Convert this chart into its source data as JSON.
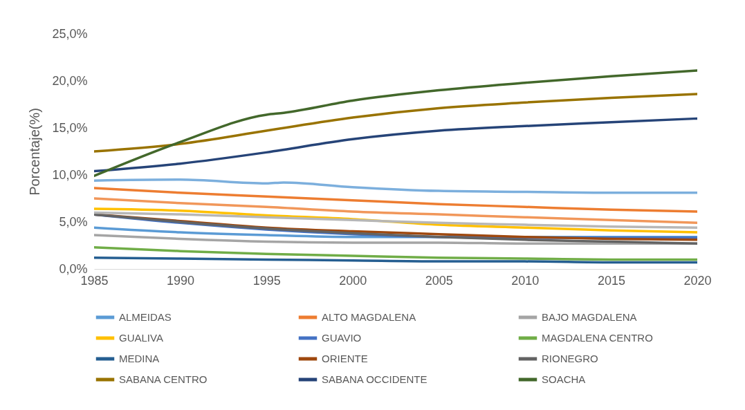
{
  "chart_data": {
    "type": "line",
    "ylabel": "Porcentaje(%)",
    "legend": "bottom",
    "xlim": [
      1985,
      2020
    ],
    "xticks": [
      1985,
      1990,
      1995,
      2000,
      2005,
      2010,
      2015,
      2020
    ],
    "ylim": [
      0,
      25
    ],
    "yticks": [
      {
        "value": 0,
        "label": "0,0%"
      },
      {
        "value": 5,
        "label": "5,0%"
      },
      {
        "value": 10,
        "label": "10,0%"
      },
      {
        "value": 15,
        "label": "15,0%"
      },
      {
        "value": 20,
        "label": "20,0%"
      },
      {
        "value": 25,
        "label": "25,0%"
      }
    ],
    "x": [
      1985,
      1990,
      1995,
      2000,
      2005,
      2010,
      2015,
      2020
    ],
    "series": [
      {
        "name": "ALMEIDAS",
        "color": "#5b9bd5",
        "values": [
          4.4,
          3.9,
          3.6,
          3.4,
          3.4,
          3.4,
          3.4,
          3.4
        ]
      },
      {
        "name": "ALTO MAGDALENA",
        "color": "#ed7d31",
        "values": [
          8.6,
          8.1,
          7.7,
          7.3,
          6.9,
          6.6,
          6.3,
          6.1
        ]
      },
      {
        "name": "BAJO MAGDALENA",
        "color": "#a5a5a5",
        "values": [
          3.6,
          3.2,
          2.9,
          2.8,
          2.8,
          2.7,
          2.7,
          2.7
        ]
      },
      {
        "name": "GUALIVA",
        "color": "#ffc000",
        "values": [
          6.4,
          6.2,
          5.7,
          5.3,
          4.7,
          4.4,
          4.1,
          3.9
        ]
      },
      {
        "name": "GUAVIO",
        "color": "#4472c4",
        "values": [
          5.8,
          4.9,
          4.2,
          3.7,
          3.4,
          3.3,
          3.3,
          3.3
        ]
      },
      {
        "name": "MAGDALENA CENTRO",
        "color": "#70ad47",
        "values": [
          2.3,
          1.9,
          1.6,
          1.4,
          1.2,
          1.1,
          1.0,
          1.0
        ]
      },
      {
        "name": "MEDINA",
        "color": "#255e91",
        "values": [
          1.2,
          1.1,
          1.0,
          0.9,
          0.8,
          0.8,
          0.7,
          0.7
        ]
      },
      {
        "name": "ORIENTE",
        "color": "#9e480e",
        "values": [
          5.8,
          5.1,
          4.4,
          4.0,
          3.7,
          3.4,
          3.2,
          3.1
        ]
      },
      {
        "name": "RIONEGRO",
        "color": "#636363",
        "values": [
          5.8,
          5.0,
          4.3,
          3.8,
          3.4,
          3.1,
          2.9,
          2.7
        ]
      },
      {
        "name": "SABANA CENTRO",
        "color": "#997300",
        "values": [
          12.5,
          13.3,
          14.7,
          16.1,
          17.1,
          17.7,
          18.2,
          18.6
        ]
      },
      {
        "name": "SABANA OCCIDENTE",
        "color": "#264478",
        "values": [
          10.4,
          11.2,
          12.4,
          13.8,
          14.7,
          15.2,
          15.6,
          16.0
        ]
      },
      {
        "name": "SOACHA",
        "color": "#43682b",
        "x": [
          1985,
          1990,
          1995,
          1996,
          2000,
          2005,
          2010,
          2015,
          2020
        ],
        "values": [
          9.9,
          13.5,
          16.4,
          16.6,
          17.9,
          19.0,
          19.8,
          20.5,
          21.1
        ]
      },
      {
        "color": "#7cafdd",
        "x": [
          1985,
          1990,
          1995,
          1996,
          2000,
          2005,
          2010,
          2015,
          2020
        ],
        "values": [
          9.4,
          9.5,
          9.1,
          9.2,
          8.7,
          8.3,
          8.2,
          8.1,
          8.1
        ]
      },
      {
        "color": "#f1975a",
        "values": [
          7.5,
          7.0,
          6.6,
          6.1,
          5.8,
          5.5,
          5.2,
          4.9
        ]
      },
      {
        "color": "#b7b7b7",
        "values": [
          6.0,
          5.8,
          5.5,
          5.2,
          4.9,
          4.7,
          4.5,
          4.4
        ]
      }
    ]
  }
}
